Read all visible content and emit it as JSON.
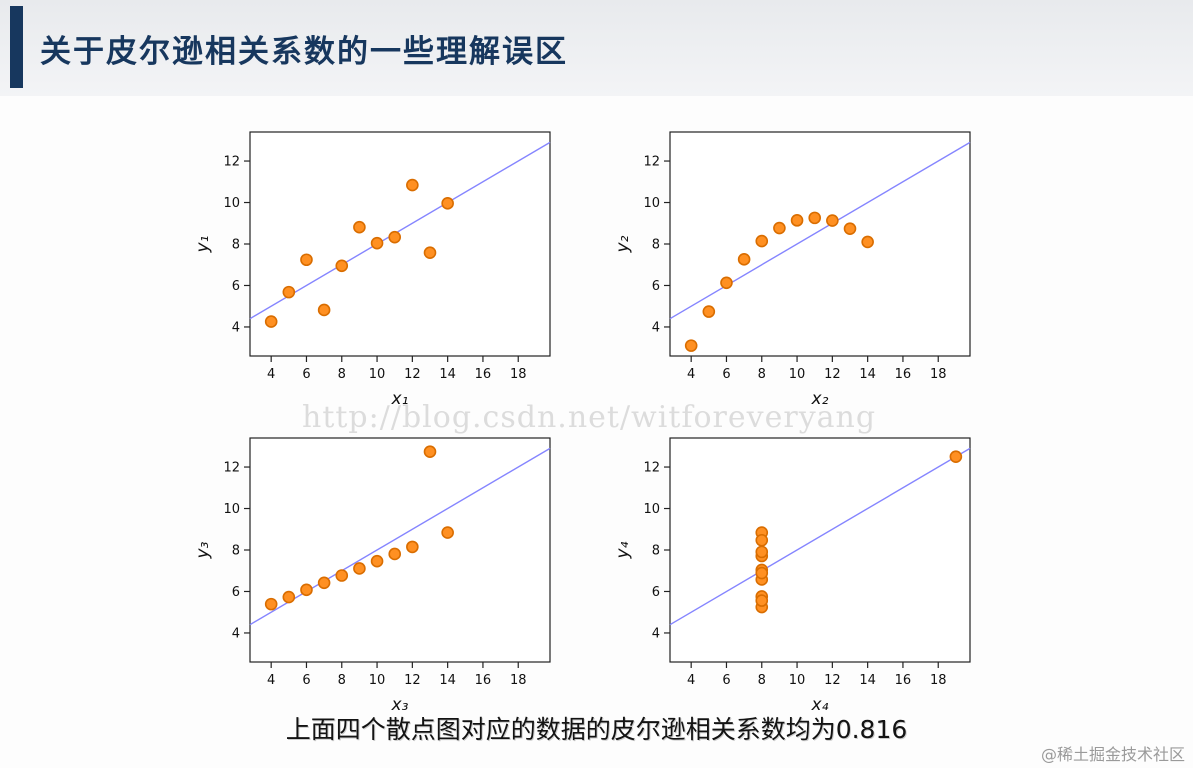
{
  "page": {
    "title": "关于皮尔逊相关系数的一些理解误区",
    "caption": "上面四个散点图对应的数据的皮尔逊相关系数均为0.816",
    "csdn_watermark": "http://blog.csdn.net/witforeveryang",
    "juejin_watermark": "@稀土掘金技术社区",
    "accent_color": "#17375e"
  },
  "chart_data": [
    {
      "type": "scatter",
      "name": "anscombe-1",
      "xlabel": "x₁",
      "ylabel": "y₁",
      "x": [
        10,
        8,
        13,
        9,
        11,
        14,
        6,
        4,
        12,
        7,
        5
      ],
      "y": [
        8.04,
        6.95,
        7.58,
        8.81,
        8.33,
        9.96,
        7.24,
        4.26,
        10.84,
        4.82,
        5.68
      ],
      "xlim": [
        2.8,
        19.8
      ],
      "ylim": [
        2.6,
        13.4
      ],
      "xticks": [
        4,
        6,
        8,
        10,
        12,
        14,
        16,
        18
      ],
      "yticks": [
        4,
        6,
        8,
        10,
        12
      ],
      "regression": {
        "intercept": 3.0,
        "slope": 0.5
      },
      "pearson_r": 0.816,
      "point_color": "#ff9022",
      "point_stroke": "#d96d00",
      "line_color": "#8585ff"
    },
    {
      "type": "scatter",
      "name": "anscombe-2",
      "xlabel": "x₂",
      "ylabel": "y₂",
      "x": [
        10,
        8,
        13,
        9,
        11,
        14,
        6,
        4,
        12,
        7,
        5
      ],
      "y": [
        9.14,
        8.14,
        8.74,
        8.77,
        9.26,
        8.1,
        6.13,
        3.1,
        9.13,
        7.26,
        4.74
      ],
      "xlim": [
        2.8,
        19.8
      ],
      "ylim": [
        2.6,
        13.4
      ],
      "xticks": [
        4,
        6,
        8,
        10,
        12,
        14,
        16,
        18
      ],
      "yticks": [
        4,
        6,
        8,
        10,
        12
      ],
      "regression": {
        "intercept": 3.0,
        "slope": 0.5
      },
      "pearson_r": 0.816,
      "point_color": "#ff9022",
      "point_stroke": "#d96d00",
      "line_color": "#8585ff"
    },
    {
      "type": "scatter",
      "name": "anscombe-3",
      "xlabel": "x₃",
      "ylabel": "y₃",
      "x": [
        10,
        8,
        13,
        9,
        11,
        14,
        6,
        4,
        12,
        7,
        5
      ],
      "y": [
        7.46,
        6.77,
        12.74,
        7.11,
        7.81,
        8.84,
        6.08,
        5.39,
        8.15,
        6.42,
        5.73
      ],
      "xlim": [
        2.8,
        19.8
      ],
      "ylim": [
        2.6,
        13.4
      ],
      "xticks": [
        4,
        6,
        8,
        10,
        12,
        14,
        16,
        18
      ],
      "yticks": [
        4,
        6,
        8,
        10,
        12
      ],
      "regression": {
        "intercept": 3.0,
        "slope": 0.5
      },
      "pearson_r": 0.816,
      "point_color": "#ff9022",
      "point_stroke": "#d96d00",
      "line_color": "#8585ff"
    },
    {
      "type": "scatter",
      "name": "anscombe-4",
      "xlabel": "x₄",
      "ylabel": "y₄",
      "x": [
        8,
        8,
        8,
        8,
        8,
        8,
        8,
        19,
        8,
        8,
        8
      ],
      "y": [
        6.58,
        5.76,
        7.71,
        8.84,
        8.47,
        7.04,
        5.25,
        12.5,
        5.56,
        7.91,
        6.89
      ],
      "xlim": [
        2.8,
        19.8
      ],
      "ylim": [
        2.6,
        13.4
      ],
      "xticks": [
        4,
        6,
        8,
        10,
        12,
        14,
        16,
        18
      ],
      "yticks": [
        4,
        6,
        8,
        10,
        12
      ],
      "regression": {
        "intercept": 3.0,
        "slope": 0.5
      },
      "pearson_r": 0.816,
      "point_color": "#ff9022",
      "point_stroke": "#d96d00",
      "line_color": "#8585ff"
    }
  ]
}
